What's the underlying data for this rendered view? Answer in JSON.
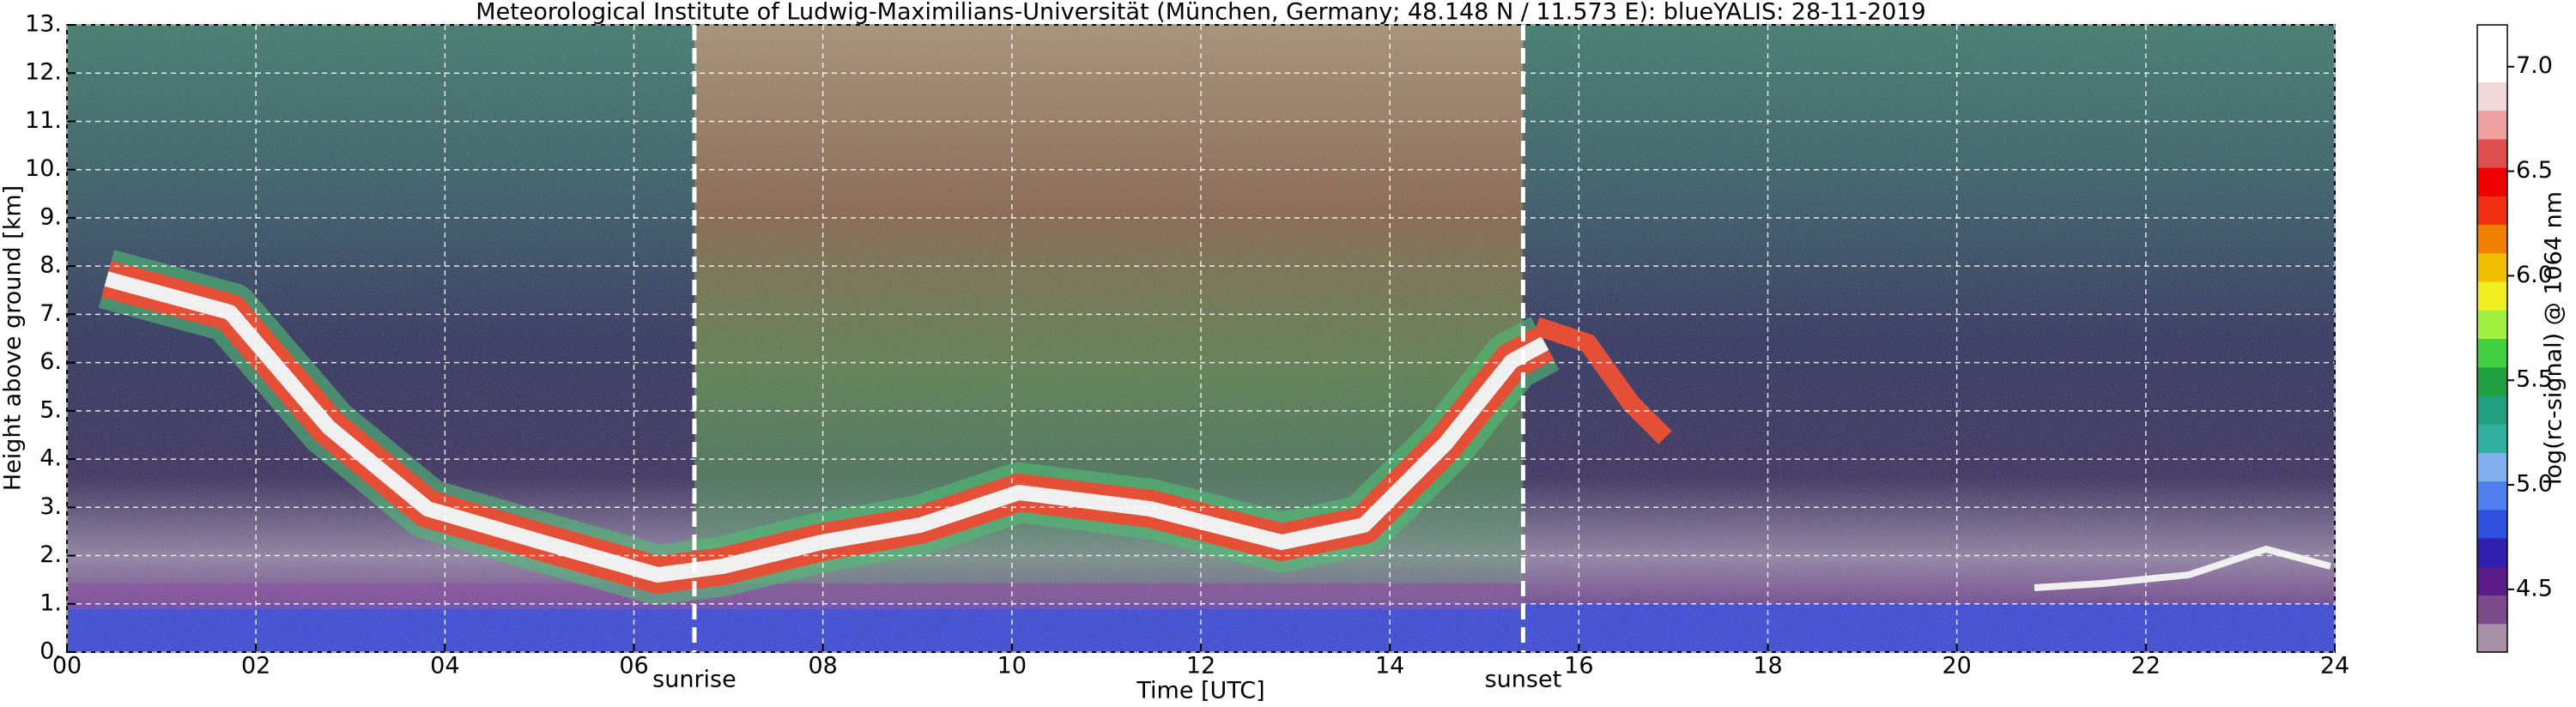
{
  "chart_data": {
    "type": "heatmap",
    "title": "Meteorological Institute of Ludwig-Maximilians-Universität (München, Germany; 48.148 N / 11.573 E):    blueYALIS: 28-11-2019",
    "x_label": "Time [UTC]",
    "y_label": "Height above ground [km]",
    "xlim": [
      0,
      24
    ],
    "xticks": [
      {
        "value": 0,
        "label": "00"
      },
      {
        "value": 2,
        "label": "02"
      },
      {
        "value": 4,
        "label": "04"
      },
      {
        "value": 6,
        "label": "06"
      },
      {
        "value": 8,
        "label": "08"
      },
      10,
      12,
      14,
      16,
      18,
      20,
      22,
      24
    ],
    "ylim": [
      0,
      13
    ],
    "yticks": [
      {
        "value": 0,
        "label": "0."
      },
      {
        "value": 1,
        "label": "1."
      },
      {
        "value": 2,
        "label": "2."
      },
      {
        "value": 3,
        "label": "3."
      },
      {
        "value": 4,
        "label": "4."
      },
      {
        "value": 5,
        "label": "5."
      },
      {
        "value": 6,
        "label": "6."
      },
      {
        "value": 7,
        "label": "7."
      },
      {
        "value": 8,
        "label": "8."
      },
      {
        "value": 9,
        "label": "9."
      },
      {
        "value": 10,
        "label": "10."
      },
      {
        "value": 11,
        "label": "11."
      },
      {
        "value": 12,
        "label": "12."
      },
      {
        "value": 13,
        "label": "13."
      }
    ],
    "grid": true,
    "annotations": [
      {
        "text": "sunrise",
        "x": 6.64
      },
      {
        "text": "sunset",
        "x": 15.41
      }
    ],
    "colorbar": {
      "label": "log(rc-signal) @ 1064 nm",
      "clim": [
        4.2,
        7.2
      ],
      "ticks": [
        4.5,
        {
          "value": 5,
          "label": "5.0"
        },
        5.5,
        {
          "value": 6,
          "label": "6.0"
        },
        6.5,
        {
          "value": 7,
          "label": "7.0"
        }
      ],
      "colors": [
        "#a890a8",
        "#7a4a8a",
        "#5a1a8a",
        "#3020b0",
        "#3050e0",
        "#5080f0",
        "#80b0f0",
        "#30b0a0",
        "#20a080",
        "#20a040",
        "#40d040",
        "#a0f040",
        "#f0f020",
        "#f0c000",
        "#f08000",
        "#f03010",
        "#f00000",
        "#e05050",
        "#f0a0a0",
        "#f0d8d8",
        "#ffffff",
        "#ffffff"
      ]
    }
  }
}
